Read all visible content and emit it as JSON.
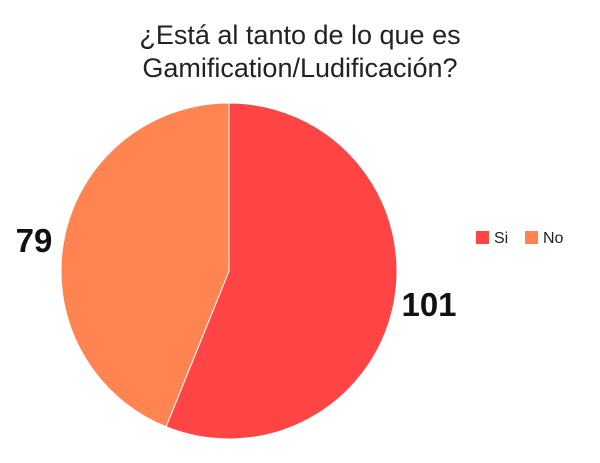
{
  "chart_data": {
    "type": "pie",
    "title_lines": [
      "¿Está al tanto de lo que es",
      "Gamification/Ludificación?"
    ],
    "categories": [
      "Si",
      "No"
    ],
    "values": [
      101,
      79
    ],
    "colors": [
      "#ff4444",
      "#ff8452"
    ],
    "data_labels": [
      "101",
      "79"
    ],
    "legend_position": "right"
  }
}
